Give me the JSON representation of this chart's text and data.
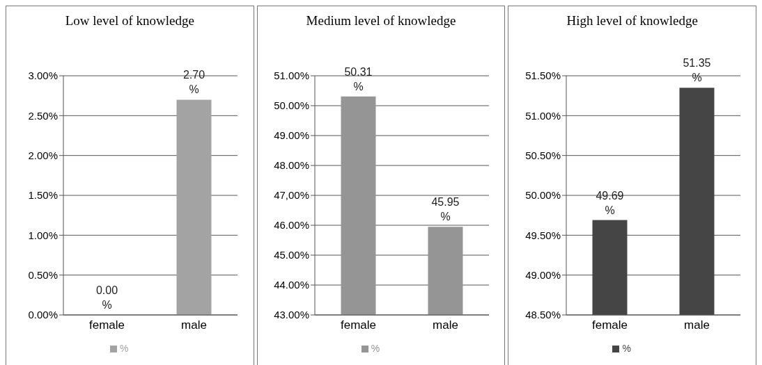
{
  "chart_data": [
    {
      "type": "bar",
      "title": "Low level of knowledge",
      "categories": [
        "female",
        "male"
      ],
      "series": [
        {
          "name": "%",
          "color": "#a3a3a3",
          "values": [
            0,
            2.7
          ],
          "value_labels": [
            "0.00 %",
            "2.70 %"
          ]
        }
      ],
      "ylim": [
        0,
        3
      ],
      "yticks": [
        {
          "value": 0,
          "label": "0.00%"
        },
        {
          "value": 0.5,
          "label": "0.50%"
        },
        {
          "value": 1,
          "label": "1.00%"
        },
        {
          "value": 1.5,
          "label": "1.50%"
        },
        {
          "value": 2,
          "label": "2.00%"
        },
        {
          "value": 2.5,
          "label": "2.50%"
        },
        {
          "value": 3,
          "label": "3.00%"
        }
      ],
      "grid": "y",
      "legend": "bottom"
    },
    {
      "type": "bar",
      "title": "Medium level of knowledge",
      "categories": [
        "female",
        "male"
      ],
      "series": [
        {
          "name": "%",
          "color": "#959595",
          "values": [
            50.31,
            45.95
          ],
          "value_labels": [
            "50.31 %",
            "45.95 %"
          ]
        }
      ],
      "ylim": [
        43,
        51
      ],
      "yticks": [
        {
          "value": 43,
          "label": "43.00%"
        },
        {
          "value": 44,
          "label": "44.00%"
        },
        {
          "value": 45,
          "label": "45.00%"
        },
        {
          "value": 46,
          "label": "46.00%"
        },
        {
          "value": 47,
          "label": "47,00%"
        },
        {
          "value": 48,
          "label": "48.00%"
        },
        {
          "value": 49,
          "label": "49.00%"
        },
        {
          "value": 50,
          "label": "50.00%"
        },
        {
          "value": 51,
          "label": "51.00%"
        }
      ],
      "grid": "y",
      "legend": "bottom"
    },
    {
      "type": "bar",
      "title": "High level of knowledge",
      "categories": [
        "female",
        "male"
      ],
      "series": [
        {
          "name": "%",
          "color": "#454545",
          "values": [
            49.69,
            51.35
          ],
          "value_labels": [
            "49.69 %",
            "51.35 %"
          ]
        }
      ],
      "ylim": [
        48.5,
        51.5
      ],
      "yticks": [
        {
          "value": 48.5,
          "label": "48.50%"
        },
        {
          "value": 49,
          "label": "49.00%"
        },
        {
          "value": 49.5,
          "label": "49.50%"
        },
        {
          "value": 50,
          "label": "50.00%"
        },
        {
          "value": 50.5,
          "label": "50.50%"
        },
        {
          "value": 51,
          "label": "51.00%"
        },
        {
          "value": 51.5,
          "label": "51.50%"
        }
      ],
      "grid": "y",
      "legend": "bottom"
    }
  ]
}
